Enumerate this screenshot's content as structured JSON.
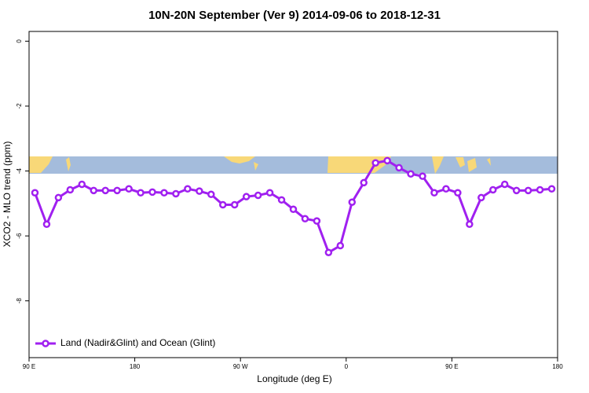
{
  "chart_data": {
    "type": "line",
    "title": "10N-20N September (Ver 9)   2014-09-06 to 2018-12-31",
    "x_label": "Longitude (deg E)",
    "y_label": "XCO2 - MLO trend (ppm)",
    "x": [
      95,
      105,
      115,
      125,
      135,
      145,
      155,
      165,
      175,
      185,
      195,
      205,
      215,
      225,
      235,
      245,
      255,
      265,
      275,
      285,
      295,
      305,
      315,
      325,
      335,
      345,
      355,
      365,
      375,
      385,
      395,
      405,
      415,
      425,
      435,
      445,
      455,
      465,
      475,
      485,
      495,
      505,
      515,
      525,
      535
    ],
    "series": [
      {
        "name": "Land (Nadir&Glint) and Ocean (Glint)",
        "color": "#a020f0",
        "values": [
          -4.67,
          -5.64,
          -4.82,
          -4.58,
          -4.41,
          -4.6,
          -4.6,
          -4.6,
          -4.55,
          -4.67,
          -4.65,
          -4.67,
          -4.7,
          -4.55,
          -4.62,
          -4.72,
          -5.04,
          -5.04,
          -4.79,
          -4.75,
          -4.67,
          -4.89,
          -5.18,
          -5.47,
          -5.54,
          -6.51,
          -6.3,
          -4.96,
          -4.36,
          -3.75,
          -3.68,
          -3.9,
          -4.09,
          -4.16,
          -4.67,
          -4.55,
          -4.67,
          -5.64,
          -4.82,
          -4.58,
          -4.41,
          -4.6,
          -4.6,
          -4.58,
          -4.55
        ]
      }
    ],
    "xlim": [
      90,
      540
    ],
    "xticks": [
      {
        "value": 90,
        "label": "90 E"
      },
      {
        "value": 180,
        "label": "180"
      },
      {
        "value": 270,
        "label": "90 W"
      },
      {
        "value": 360,
        "label": "0"
      },
      {
        "value": 450,
        "label": "90 E"
      },
      {
        "value": 540,
        "label": "180"
      }
    ],
    "ylim": [
      -9.75,
      0.3
    ],
    "yticks": [
      0,
      -2,
      -4,
      -6,
      -8
    ],
    "legend": "bottom-left"
  }
}
